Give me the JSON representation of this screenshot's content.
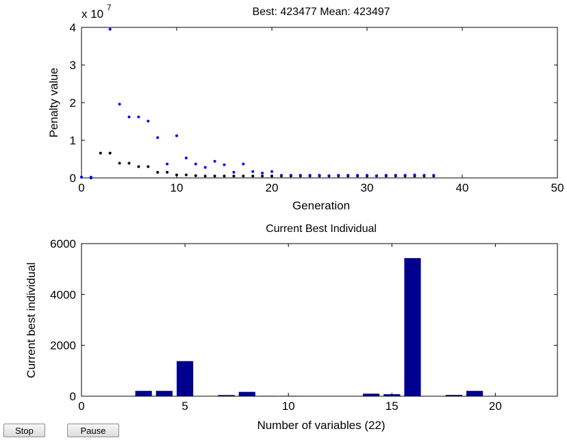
{
  "chart_data": [
    {
      "type": "scatter",
      "title": "Best: 423477 Mean: 423497",
      "xlabel": "Generation",
      "ylabel": "Penalty value",
      "y_multiplier_label": "x 10",
      "y_multiplier_exponent": "7",
      "xlim": [
        0,
        50
      ],
      "ylim": [
        0,
        4
      ],
      "x_ticks": [
        "0",
        "10",
        "20",
        "30",
        "40",
        "50"
      ],
      "y_ticks": [
        "0",
        "1",
        "2",
        "3",
        "4"
      ],
      "grid": false,
      "series": [
        {
          "color": "#000000",
          "points": [
            [
              0,
              0.02
            ],
            [
              1,
              0
            ],
            [
              2,
              0.66
            ],
            [
              3,
              0.66
            ],
            [
              4,
              0.39
            ],
            [
              5,
              0.39
            ],
            [
              6,
              0.3
            ],
            [
              7,
              0.3
            ],
            [
              8,
              0.15
            ],
            [
              9,
              0.15
            ],
            [
              10,
              0.08
            ],
            [
              11,
              0.08
            ],
            [
              12,
              0.06
            ],
            [
              13,
              0.05
            ],
            [
              14,
              0.05
            ],
            [
              15,
              0.05
            ],
            [
              16,
              0.05
            ],
            [
              17,
              0.05
            ],
            [
              18,
              0.05
            ],
            [
              19,
              0.05
            ],
            [
              20,
              0.05
            ],
            [
              21,
              0.05
            ],
            [
              22,
              0.05
            ],
            [
              23,
              0.05
            ],
            [
              24,
              0.05
            ],
            [
              25,
              0.05
            ],
            [
              26,
              0.05
            ],
            [
              27,
              0.05
            ],
            [
              28,
              0.05
            ],
            [
              29,
              0.05
            ],
            [
              30,
              0.05
            ],
            [
              31,
              0.05
            ],
            [
              32,
              0.05
            ],
            [
              33,
              0.05
            ],
            [
              34,
              0.05
            ],
            [
              35,
              0.05
            ],
            [
              36,
              0.05
            ],
            [
              37,
              0.05
            ]
          ]
        },
        {
          "color": "#0000ff",
          "points": [
            [
              0,
              0.02
            ],
            [
              1,
              0.02
            ],
            [
              3,
              3.95
            ],
            [
              4,
              1.96
            ],
            [
              5,
              1.62
            ],
            [
              6,
              1.62
            ],
            [
              7,
              1.51
            ],
            [
              8,
              1.07
            ],
            [
              9,
              0.37
            ],
            [
              10,
              1.12
            ],
            [
              11,
              0.53
            ],
            [
              12,
              0.37
            ],
            [
              13,
              0.28
            ],
            [
              14,
              0.44
            ],
            [
              15,
              0.35
            ],
            [
              16,
              0.15
            ],
            [
              17,
              0.37
            ],
            [
              18,
              0.17
            ],
            [
              19,
              0.13
            ],
            [
              20,
              0.17
            ],
            [
              21,
              0.07
            ],
            [
              22,
              0.07
            ],
            [
              23,
              0.07
            ],
            [
              24,
              0.07
            ],
            [
              25,
              0.07
            ],
            [
              26,
              0.06
            ],
            [
              27,
              0.07
            ],
            [
              28,
              0.07
            ],
            [
              29,
              0.07
            ],
            [
              30,
              0.07
            ],
            [
              31,
              0.06
            ],
            [
              32,
              0.07
            ],
            [
              33,
              0.07
            ],
            [
              34,
              0.07
            ],
            [
              35,
              0.08
            ],
            [
              36,
              0.07
            ],
            [
              37,
              0.07
            ]
          ]
        }
      ]
    },
    {
      "type": "bar",
      "title": "Current Best Individual",
      "xlabel": "Number of variables (22)",
      "ylabel": "Current best individual",
      "xlim": [
        0,
        23
      ],
      "ylim": [
        0,
        6000
      ],
      "x_ticks": [
        "0",
        "5",
        "10",
        "15",
        "20"
      ],
      "y_ticks": [
        "0",
        "2000",
        "4000",
        "6000"
      ],
      "bar_color": "#00008f",
      "categories": [
        1,
        2,
        3,
        4,
        5,
        6,
        7,
        8,
        9,
        10,
        11,
        12,
        13,
        14,
        15,
        16,
        17,
        18,
        19,
        20,
        21,
        22
      ],
      "values": [
        0,
        0,
        210,
        210,
        1380,
        0,
        45,
        170,
        15,
        15,
        5,
        5,
        5,
        100,
        80,
        5430,
        10,
        50,
        210,
        10,
        10,
        10
      ]
    }
  ],
  "controls": {
    "stop_label": "Stop",
    "pause_label": "Pause"
  }
}
